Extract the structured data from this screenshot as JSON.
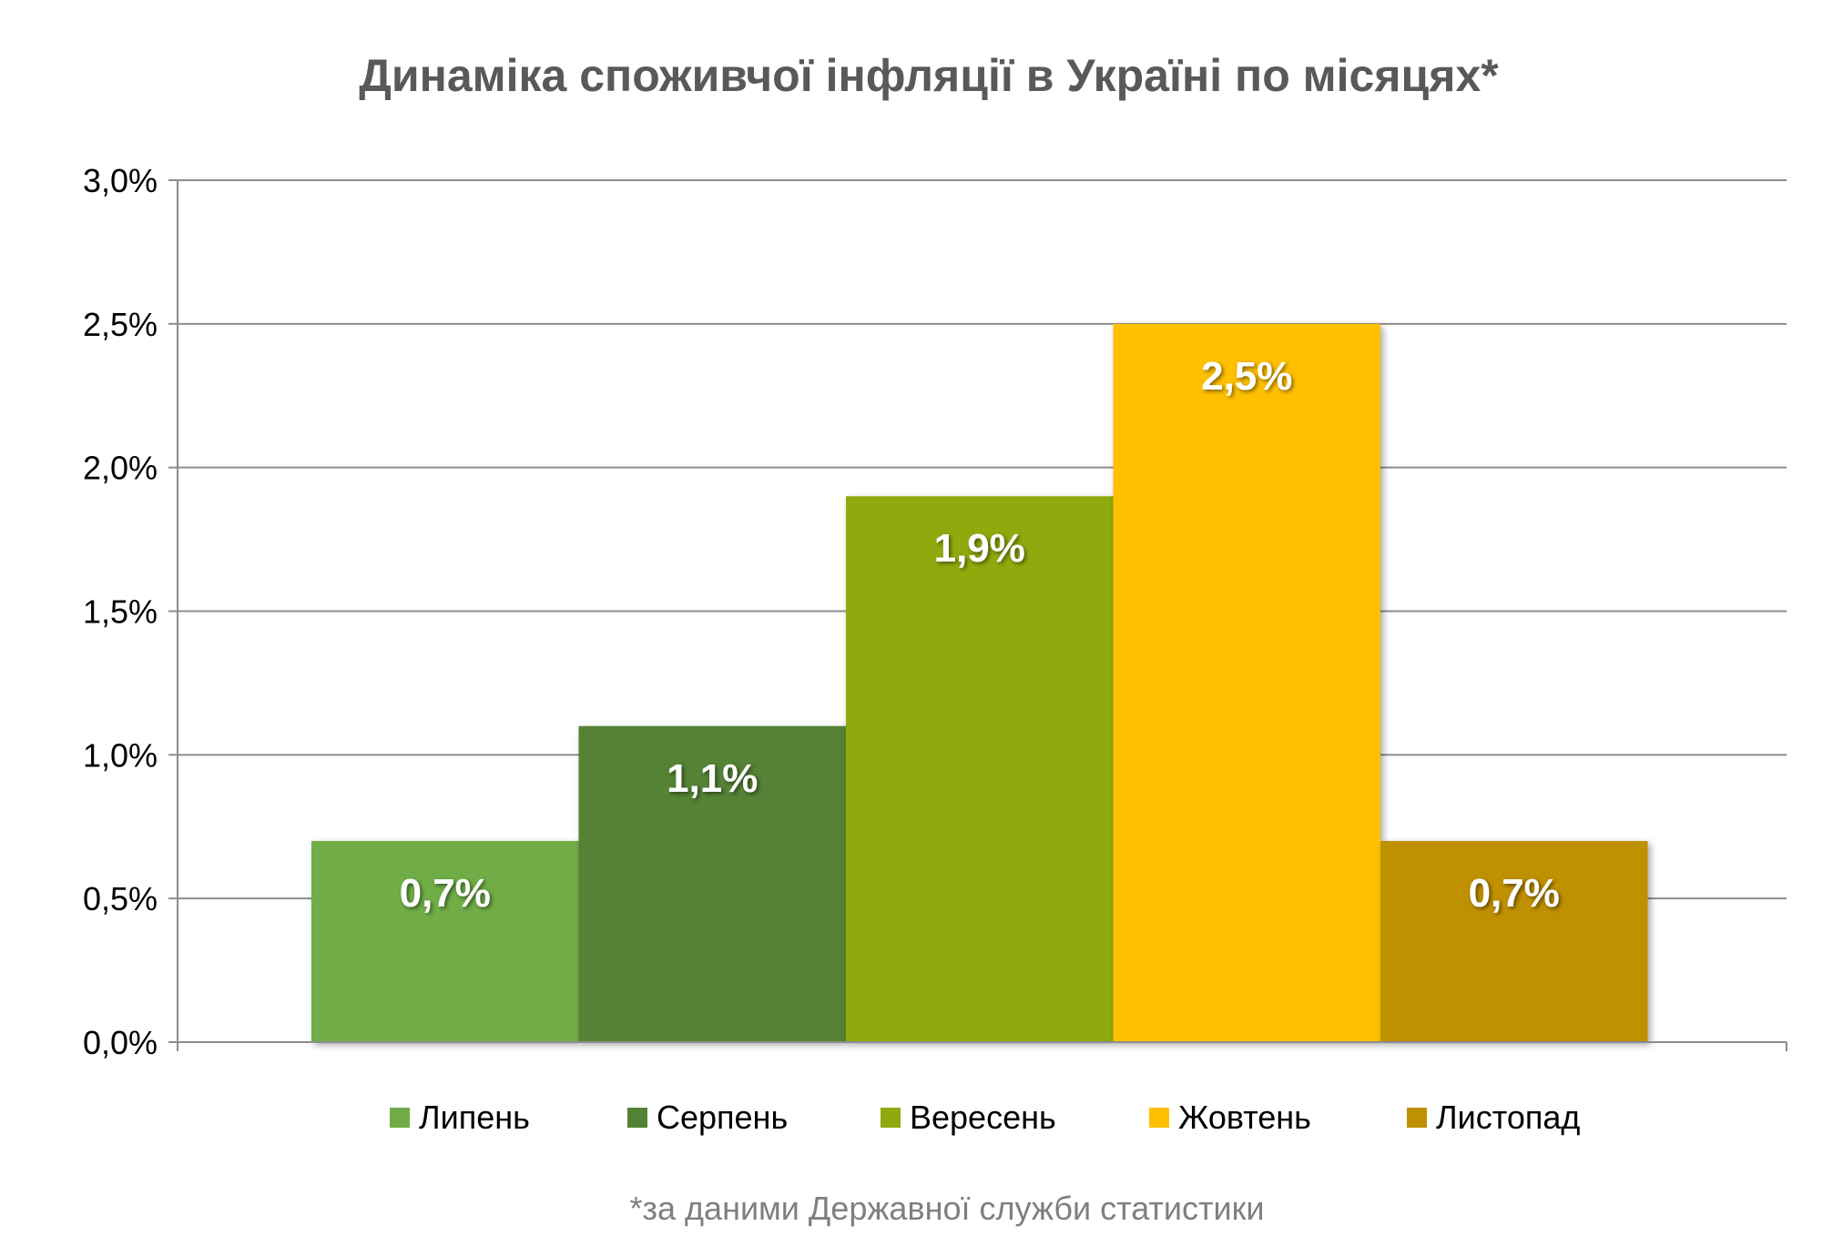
{
  "chart_data": {
    "type": "bar",
    "title": "Динаміка споживчої інфляції в Україні по місяцях*",
    "categories": [
      "Липень",
      "Серпень",
      "Вересень",
      "Жовтень",
      "Листопад"
    ],
    "values": [
      0.7,
      1.1,
      1.9,
      2.5,
      0.7
    ],
    "data_labels": [
      "0,7%",
      "1,1%",
      "1,9%",
      "2,5%",
      "0,7%"
    ],
    "colors": [
      "#70ad47",
      "#548235",
      "#8faa10",
      "#ffc000",
      "#bf9000"
    ],
    "ylim": [
      0,
      3.0
    ],
    "yticks": [
      0.0,
      0.5,
      1.0,
      1.5,
      2.0,
      2.5,
      3.0
    ],
    "ytick_labels": [
      "0,0%",
      "0,5%",
      "1,0%",
      "1,5%",
      "2,0%",
      "2,5%",
      "3,0%"
    ],
    "xlabel": "",
    "ylabel": "",
    "grid": true,
    "legend_position": "bottom",
    "footnote": "*за даними Державної служби статистики"
  }
}
